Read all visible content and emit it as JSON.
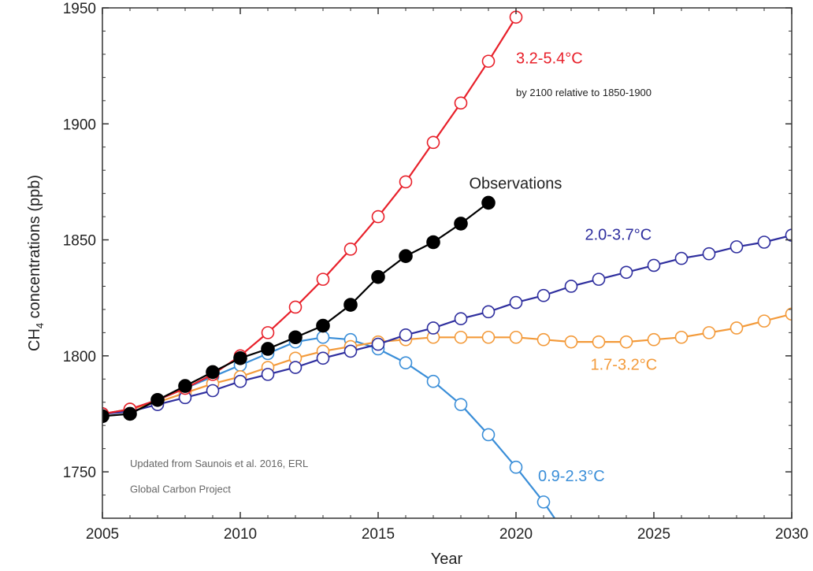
{
  "chart_data": {
    "type": "line",
    "xlabel": "Year",
    "ylabel": "CH4 concentrations (ppb)",
    "ylabel_main": "CH",
    "ylabel_sub": "4",
    "ylabel_rest": " concentrations (ppb)",
    "xlim": [
      2005,
      2030
    ],
    "ylim": [
      1730,
      1950
    ],
    "xticks": [
      2005,
      2010,
      2015,
      2020,
      2025,
      2030
    ],
    "yticks": [
      1750,
      1800,
      1850,
      1900,
      1950
    ],
    "grid": false,
    "series": [
      {
        "color": "#e8202a",
        "marker": "open-circle",
        "x": [
          2005,
          2006,
          2007,
          2008,
          2009,
          2010,
          2011,
          2012,
          2013,
          2014,
          2015,
          2016,
          2017,
          2018,
          2019,
          2020
        ],
        "values": [
          1775,
          1777,
          1781,
          1786,
          1792,
          1800,
          1810,
          1821,
          1833,
          1846,
          1860,
          1875,
          1892,
          1909,
          1927,
          1946
        ]
      },
      {
        "name": "Observations",
        "color": "#000000",
        "marker": "filled-circle",
        "x": [
          2005,
          2006,
          2007,
          2008,
          2009,
          2010,
          2011,
          2012,
          2013,
          2014,
          2015,
          2016,
          2017,
          2018,
          2019
        ],
        "values": [
          1774,
          1775,
          1781,
          1787,
          1793,
          1799,
          1803,
          1808,
          1813,
          1822,
          1834,
          1843,
          1849,
          1857,
          1866
        ]
      },
      {
        "color": "#2e2e9e",
        "marker": "open-circle",
        "x": [
          2005,
          2006,
          2007,
          2008,
          2009,
          2010,
          2011,
          2012,
          2013,
          2014,
          2015,
          2016,
          2017,
          2018,
          2019,
          2020,
          2021,
          2022,
          2023,
          2024,
          2025,
          2026,
          2027,
          2028,
          2029,
          2030
        ],
        "values": [
          1775,
          1776,
          1779,
          1782,
          1785,
          1789,
          1792,
          1795,
          1799,
          1802,
          1805,
          1809,
          1812,
          1816,
          1819,
          1823,
          1826,
          1830,
          1833,
          1836,
          1839,
          1842,
          1844,
          1847,
          1849,
          1852
        ]
      },
      {
        "color": "#f39a3a",
        "marker": "open-circle",
        "x": [
          2005,
          2006,
          2007,
          2008,
          2009,
          2010,
          2011,
          2012,
          2013,
          2014,
          2015,
          2016,
          2017,
          2018,
          2019,
          2020,
          2021,
          2022,
          2023,
          2024,
          2025,
          2026,
          2027,
          2028,
          2029,
          2030
        ],
        "values": [
          1775,
          1777,
          1780,
          1784,
          1788,
          1791,
          1795,
          1799,
          1802,
          1804,
          1806,
          1807,
          1808,
          1808,
          1808,
          1808,
          1807,
          1806,
          1806,
          1806,
          1807,
          1808,
          1810,
          1812,
          1815,
          1818
        ]
      },
      {
        "color": "#3a8ed8",
        "marker": "open-circle",
        "x": [
          2005,
          2006,
          2007,
          2008,
          2009,
          2010,
          2011,
          2012,
          2013,
          2014,
          2015,
          2016,
          2017,
          2018,
          2019,
          2020,
          2021
        ],
        "values": [
          1775,
          1777,
          1781,
          1786,
          1791,
          1796,
          1801,
          1806,
          1808,
          1807,
          1803,
          1797,
          1789,
          1779,
          1766,
          1752,
          1737
        ],
        "extend_x": 2021.4,
        "extend_y": 1730
      }
    ],
    "annotations": [
      {
        "text": "3.2-5.4°C",
        "color": "#e8202a",
        "x": 2020.0,
        "y": 1926
      },
      {
        "text": "by 2100 relative to 1850-1900",
        "color": "#222222",
        "x": 2020.0,
        "y": 1912
      },
      {
        "text": "Observations",
        "color": "#222222",
        "x": 2018.3,
        "y": 1872
      },
      {
        "text": "2.0-3.7°C",
        "color": "#2e2e9e",
        "x": 2022.5,
        "y": 1850
      },
      {
        "text": "1.7-3.2°C",
        "color": "#f39a3a",
        "x": 2022.7,
        "y": 1794
      },
      {
        "text": "0.9-2.3°C",
        "color": "#3a8ed8",
        "x": 2020.8,
        "y": 1746
      },
      {
        "text": "Updated from Saunois et al. 2016, ERL",
        "color": "#666666",
        "x": 2006.0,
        "y": 1752
      },
      {
        "text": "Global Carbon Project",
        "color": "#666666",
        "x": 2006.0,
        "y": 1741
      }
    ]
  }
}
